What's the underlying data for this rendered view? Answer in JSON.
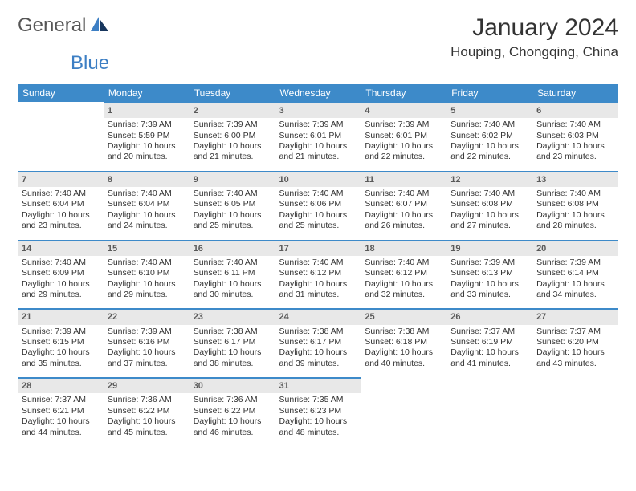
{
  "logo": {
    "part1": "General",
    "part2": "Blue"
  },
  "title": "January 2024",
  "location": "Houping, Chongqing, China",
  "colors": {
    "header_bg": "#3d8ac9",
    "daynum_bg": "#e8e8e8",
    "row_border": "#3d8ac9",
    "text": "#333333",
    "logo_gray": "#555555",
    "logo_blue": "#3d7fc4"
  },
  "typography": {
    "title_fontsize": 30,
    "location_fontsize": 17,
    "header_fontsize": 12,
    "cell_fontsize": 10.5
  },
  "weekdays": [
    "Sunday",
    "Monday",
    "Tuesday",
    "Wednesday",
    "Thursday",
    "Friday",
    "Saturday"
  ],
  "weeks": [
    [
      null,
      {
        "n": "1",
        "sr": "Sunrise: 7:39 AM",
        "ss": "Sunset: 5:59 PM",
        "d1": "Daylight: 10 hours",
        "d2": "and 20 minutes."
      },
      {
        "n": "2",
        "sr": "Sunrise: 7:39 AM",
        "ss": "Sunset: 6:00 PM",
        "d1": "Daylight: 10 hours",
        "d2": "and 21 minutes."
      },
      {
        "n": "3",
        "sr": "Sunrise: 7:39 AM",
        "ss": "Sunset: 6:01 PM",
        "d1": "Daylight: 10 hours",
        "d2": "and 21 minutes."
      },
      {
        "n": "4",
        "sr": "Sunrise: 7:39 AM",
        "ss": "Sunset: 6:01 PM",
        "d1": "Daylight: 10 hours",
        "d2": "and 22 minutes."
      },
      {
        "n": "5",
        "sr": "Sunrise: 7:40 AM",
        "ss": "Sunset: 6:02 PM",
        "d1": "Daylight: 10 hours",
        "d2": "and 22 minutes."
      },
      {
        "n": "6",
        "sr": "Sunrise: 7:40 AM",
        "ss": "Sunset: 6:03 PM",
        "d1": "Daylight: 10 hours",
        "d2": "and 23 minutes."
      }
    ],
    [
      {
        "n": "7",
        "sr": "Sunrise: 7:40 AM",
        "ss": "Sunset: 6:04 PM",
        "d1": "Daylight: 10 hours",
        "d2": "and 23 minutes."
      },
      {
        "n": "8",
        "sr": "Sunrise: 7:40 AM",
        "ss": "Sunset: 6:04 PM",
        "d1": "Daylight: 10 hours",
        "d2": "and 24 minutes."
      },
      {
        "n": "9",
        "sr": "Sunrise: 7:40 AM",
        "ss": "Sunset: 6:05 PM",
        "d1": "Daylight: 10 hours",
        "d2": "and 25 minutes."
      },
      {
        "n": "10",
        "sr": "Sunrise: 7:40 AM",
        "ss": "Sunset: 6:06 PM",
        "d1": "Daylight: 10 hours",
        "d2": "and 25 minutes."
      },
      {
        "n": "11",
        "sr": "Sunrise: 7:40 AM",
        "ss": "Sunset: 6:07 PM",
        "d1": "Daylight: 10 hours",
        "d2": "and 26 minutes."
      },
      {
        "n": "12",
        "sr": "Sunrise: 7:40 AM",
        "ss": "Sunset: 6:08 PM",
        "d1": "Daylight: 10 hours",
        "d2": "and 27 minutes."
      },
      {
        "n": "13",
        "sr": "Sunrise: 7:40 AM",
        "ss": "Sunset: 6:08 PM",
        "d1": "Daylight: 10 hours",
        "d2": "and 28 minutes."
      }
    ],
    [
      {
        "n": "14",
        "sr": "Sunrise: 7:40 AM",
        "ss": "Sunset: 6:09 PM",
        "d1": "Daylight: 10 hours",
        "d2": "and 29 minutes."
      },
      {
        "n": "15",
        "sr": "Sunrise: 7:40 AM",
        "ss": "Sunset: 6:10 PM",
        "d1": "Daylight: 10 hours",
        "d2": "and 29 minutes."
      },
      {
        "n": "16",
        "sr": "Sunrise: 7:40 AM",
        "ss": "Sunset: 6:11 PM",
        "d1": "Daylight: 10 hours",
        "d2": "and 30 minutes."
      },
      {
        "n": "17",
        "sr": "Sunrise: 7:40 AM",
        "ss": "Sunset: 6:12 PM",
        "d1": "Daylight: 10 hours",
        "d2": "and 31 minutes."
      },
      {
        "n": "18",
        "sr": "Sunrise: 7:40 AM",
        "ss": "Sunset: 6:12 PM",
        "d1": "Daylight: 10 hours",
        "d2": "and 32 minutes."
      },
      {
        "n": "19",
        "sr": "Sunrise: 7:39 AM",
        "ss": "Sunset: 6:13 PM",
        "d1": "Daylight: 10 hours",
        "d2": "and 33 minutes."
      },
      {
        "n": "20",
        "sr": "Sunrise: 7:39 AM",
        "ss": "Sunset: 6:14 PM",
        "d1": "Daylight: 10 hours",
        "d2": "and 34 minutes."
      }
    ],
    [
      {
        "n": "21",
        "sr": "Sunrise: 7:39 AM",
        "ss": "Sunset: 6:15 PM",
        "d1": "Daylight: 10 hours",
        "d2": "and 35 minutes."
      },
      {
        "n": "22",
        "sr": "Sunrise: 7:39 AM",
        "ss": "Sunset: 6:16 PM",
        "d1": "Daylight: 10 hours",
        "d2": "and 37 minutes."
      },
      {
        "n": "23",
        "sr": "Sunrise: 7:38 AM",
        "ss": "Sunset: 6:17 PM",
        "d1": "Daylight: 10 hours",
        "d2": "and 38 minutes."
      },
      {
        "n": "24",
        "sr": "Sunrise: 7:38 AM",
        "ss": "Sunset: 6:17 PM",
        "d1": "Daylight: 10 hours",
        "d2": "and 39 minutes."
      },
      {
        "n": "25",
        "sr": "Sunrise: 7:38 AM",
        "ss": "Sunset: 6:18 PM",
        "d1": "Daylight: 10 hours",
        "d2": "and 40 minutes."
      },
      {
        "n": "26",
        "sr": "Sunrise: 7:37 AM",
        "ss": "Sunset: 6:19 PM",
        "d1": "Daylight: 10 hours",
        "d2": "and 41 minutes."
      },
      {
        "n": "27",
        "sr": "Sunrise: 7:37 AM",
        "ss": "Sunset: 6:20 PM",
        "d1": "Daylight: 10 hours",
        "d2": "and 43 minutes."
      }
    ],
    [
      {
        "n": "28",
        "sr": "Sunrise: 7:37 AM",
        "ss": "Sunset: 6:21 PM",
        "d1": "Daylight: 10 hours",
        "d2": "and 44 minutes."
      },
      {
        "n": "29",
        "sr": "Sunrise: 7:36 AM",
        "ss": "Sunset: 6:22 PM",
        "d1": "Daylight: 10 hours",
        "d2": "and 45 minutes."
      },
      {
        "n": "30",
        "sr": "Sunrise: 7:36 AM",
        "ss": "Sunset: 6:22 PM",
        "d1": "Daylight: 10 hours",
        "d2": "and 46 minutes."
      },
      {
        "n": "31",
        "sr": "Sunrise: 7:35 AM",
        "ss": "Sunset: 6:23 PM",
        "d1": "Daylight: 10 hours",
        "d2": "and 48 minutes."
      },
      null,
      null,
      null
    ]
  ]
}
